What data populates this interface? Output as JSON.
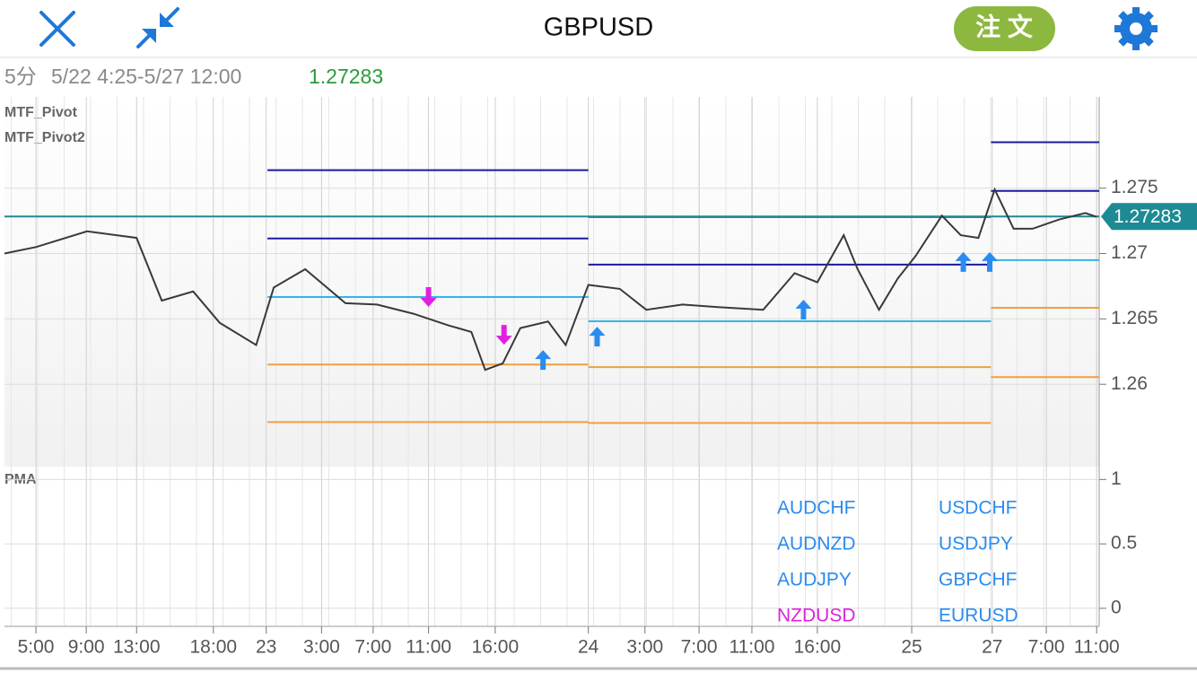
{
  "header": {
    "title": "GBPUSD",
    "order_button": "注 文"
  },
  "info": {
    "timeframe": "5分",
    "range": "5/22 4:25-5/27 12:00"
  },
  "chart_data": [
    {
      "type": "line",
      "indicators": [
        "MTF_Pivot",
        "MTF_Pivot2"
      ],
      "x": [
        2.5,
        5,
        9.06,
        13,
        15,
        17.5,
        19.6,
        22.5,
        23.9,
        26.4,
        29.6,
        32.1,
        35,
        37.8,
        39.6,
        40.7,
        42.1,
        43.5,
        45.7,
        47.1,
        48.9,
        51.4,
        53.5,
        56.4,
        59.2,
        62.8,
        65.3,
        67.1,
        69.2,
        70.3,
        72,
        73.5,
        74.9,
        77,
        78.5,
        79.9,
        81.2,
        82.7,
        84.2,
        86.3,
        88.4,
        89.3
      ],
      "series": [
        {
          "color": "#3a3a3a",
          "values": [
            1.27,
            1.2705,
            1.2717,
            1.2712,
            1.2664,
            1.2671,
            1.2647,
            1.263,
            1.2674,
            1.2688,
            1.2662,
            1.2661,
            1.2654,
            1.2645,
            1.264,
            1.2611,
            1.2616,
            1.2643,
            1.2648,
            1.263,
            1.2676,
            1.2673,
            1.2657,
            1.2661,
            1.2659,
            1.2657,
            1.2685,
            1.2678,
            1.2714,
            1.2688,
            1.2657,
            1.2681,
            1.2698,
            1.2729,
            1.2714,
            1.2712,
            1.2749,
            1.2719,
            1.2719,
            1.2726,
            1.2731,
            1.2728
          ]
        }
      ],
      "current_price": 1.27283,
      "current_price_color": "#1e8a94",
      "pivot_levels": [
        {
          "color": "#1a1aa0",
          "x": [
            23.4,
            48.9
          ],
          "value": 1.27638
        },
        {
          "color": "#1a1aa0",
          "x": [
            23.4,
            48.9
          ],
          "value": 1.27115
        },
        {
          "color": "#35b5e5",
          "x": [
            23.4,
            48.9
          ],
          "value": 1.26667
        },
        {
          "color": "#f0a040",
          "x": [
            23.4,
            48.9
          ],
          "value": 1.26151
        },
        {
          "color": "#f0a040",
          "x": [
            23.4,
            48.9
          ],
          "value": 1.25711
        },
        {
          "color": "#1a1aa0",
          "x": [
            48.9,
            80.9
          ],
          "value": 1.2728
        },
        {
          "color": "#1a1aa0",
          "x": [
            48.9,
            80.9
          ],
          "value": 1.26915
        },
        {
          "color": "#35b5e5",
          "x": [
            48.9,
            80.9
          ],
          "value": 1.26482
        },
        {
          "color": "#f0a040",
          "x": [
            48.9,
            80.9
          ],
          "value": 1.26131
        },
        {
          "color": "#f0a040",
          "x": [
            48.9,
            80.9
          ],
          "value": 1.25704
        },
        {
          "color": "#1a1aa0",
          "x": [
            80.9,
            89.5
          ],
          "value": 1.27851
        },
        {
          "color": "#1a1aa0",
          "x": [
            80.9,
            89.5
          ],
          "value": 1.27479
        },
        {
          "color": "#35b5e5",
          "x": [
            80.9,
            89.5
          ],
          "value": 1.2695
        },
        {
          "color": "#f0a040",
          "x": [
            80.9,
            89.5
          ],
          "value": 1.26585
        },
        {
          "color": "#f0a040",
          "x": [
            80.9,
            89.5
          ],
          "value": 1.26055
        }
      ],
      "buy_signals": {
        "color": "#2a8cf0",
        "x": [
          45.3,
          49.6,
          66.0,
          78.7,
          80.8
        ],
        "values": [
          1.26179,
          1.26358,
          1.26564,
          1.26929,
          1.26929
        ]
      },
      "sell_signals": {
        "color": "#e020e0",
        "x": [
          36.2,
          42.2
        ],
        "values": [
          1.26674,
          1.26385
        ]
      },
      "xlim": [
        2.5,
        89.5
      ],
      "xticks": [
        {
          "value": 5,
          "label": "5:00"
        },
        {
          "value": 9,
          "label": "9:00"
        },
        {
          "value": 13,
          "label": "13:00"
        },
        {
          "value": 19.1,
          "label": "18:00"
        },
        {
          "value": 23.3,
          "label": "23"
        },
        {
          "value": 27.7,
          "label": "3:00"
        },
        {
          "value": 31.8,
          "label": "7:00"
        },
        {
          "value": 36.2,
          "label": "11:00"
        },
        {
          "value": 41.5,
          "label": "16:00"
        },
        {
          "value": 48.9,
          "label": "24"
        },
        {
          "value": 53.4,
          "label": "3:00"
        },
        {
          "value": 57.7,
          "label": "7:00"
        },
        {
          "value": 61.9,
          "label": "11:00"
        },
        {
          "value": 67.1,
          "label": "16:00"
        },
        {
          "value": 74.6,
          "label": "25"
        },
        {
          "value": 81,
          "label": "27"
        },
        {
          "value": 85.3,
          "label": "7:00"
        },
        {
          "value": 89.3,
          "label": "11:00"
        }
      ],
      "ylim": [
        1.2537,
        1.2815
      ],
      "yticks": [
        1.26,
        1.265,
        1.27,
        1.275
      ],
      "grid": true
    },
    {
      "type": "labels",
      "title": "PMA",
      "ylim": [
        -0.14,
        1.1
      ],
      "yticks": [
        0,
        0.5,
        1
      ],
      "grid": true,
      "labels": [
        {
          "text": "AUDCHF",
          "color": "#2a8cf0"
        },
        {
          "text": "AUDNZD",
          "color": "#2a8cf0"
        },
        {
          "text": "AUDJPY",
          "color": "#2a8cf0"
        },
        {
          "text": "NZDUSD",
          "color": "#e020e0"
        },
        {
          "text": "USDCHF",
          "color": "#2a8cf0"
        },
        {
          "text": "USDJPY",
          "color": "#2a8cf0"
        },
        {
          "text": "GBPCHF",
          "color": "#2a8cf0"
        },
        {
          "text": "EURUSD",
          "color": "#2a8cf0"
        }
      ]
    }
  ]
}
